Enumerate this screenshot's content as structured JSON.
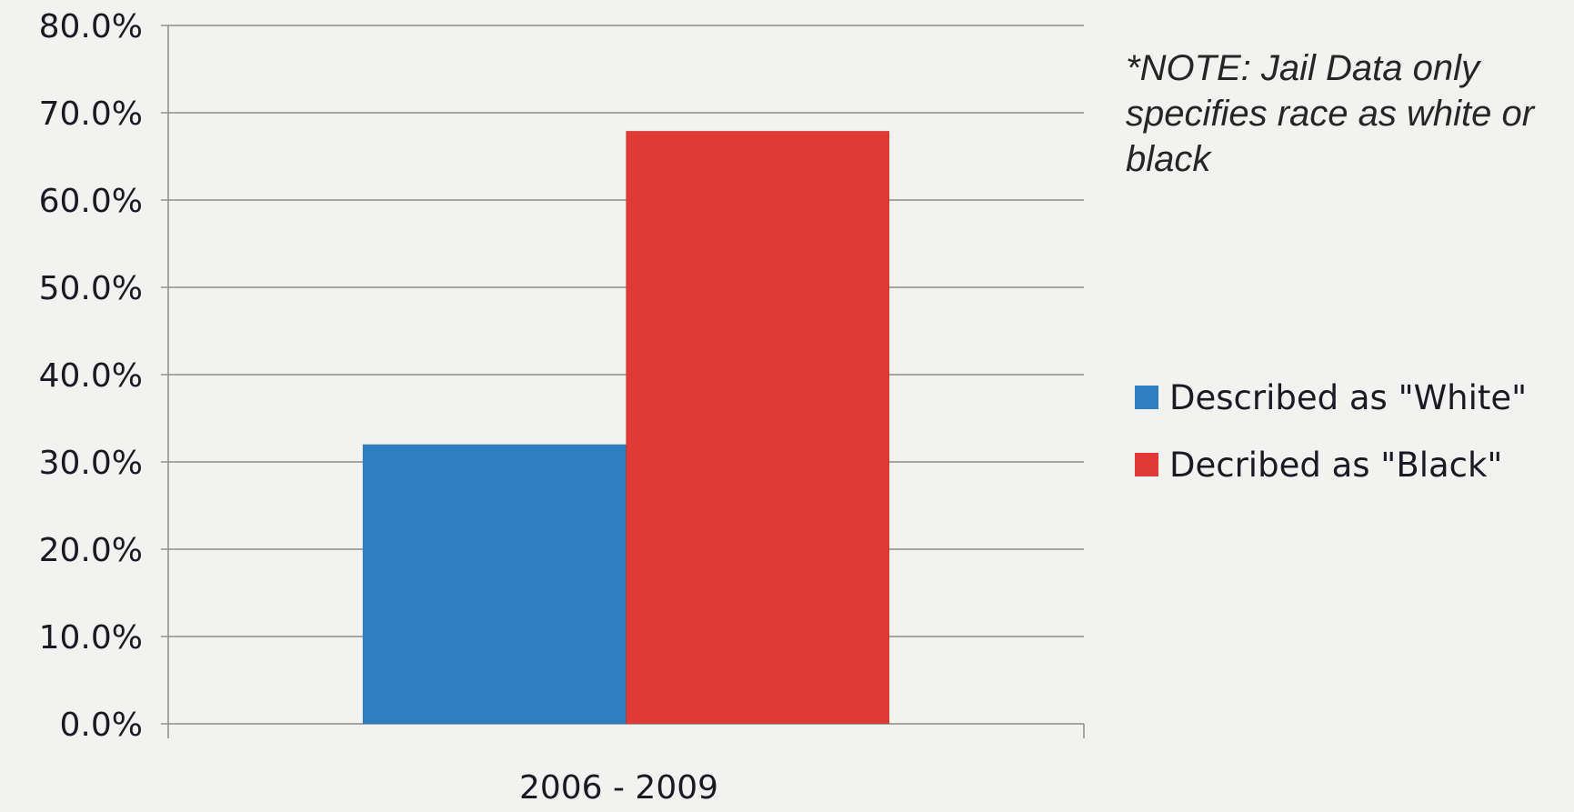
{
  "chart_data": {
    "type": "bar",
    "categories": [
      "2006 - 2009"
    ],
    "series": [
      {
        "name": "Described as \"White\"",
        "values": [
          32.0
        ],
        "color": "#2f7fc0"
      },
      {
        "name": "Decribed as \"Black\"",
        "values": [
          67.9
        ],
        "color": "#df3a35"
      }
    ],
    "ylim": [
      0,
      80
    ],
    "y_ticks": [
      0,
      10,
      20,
      30,
      40,
      50,
      60,
      70,
      80
    ],
    "y_tick_labels": [
      "0.0%",
      "10.0%",
      "20.0%",
      "30.0%",
      "40.0%",
      "50.0%",
      "60.0%",
      "70.0%",
      "80.0%"
    ],
    "grid": true,
    "legend_position": "right",
    "annotation": "*NOTE: Jail Data only specifies race as white or black"
  }
}
